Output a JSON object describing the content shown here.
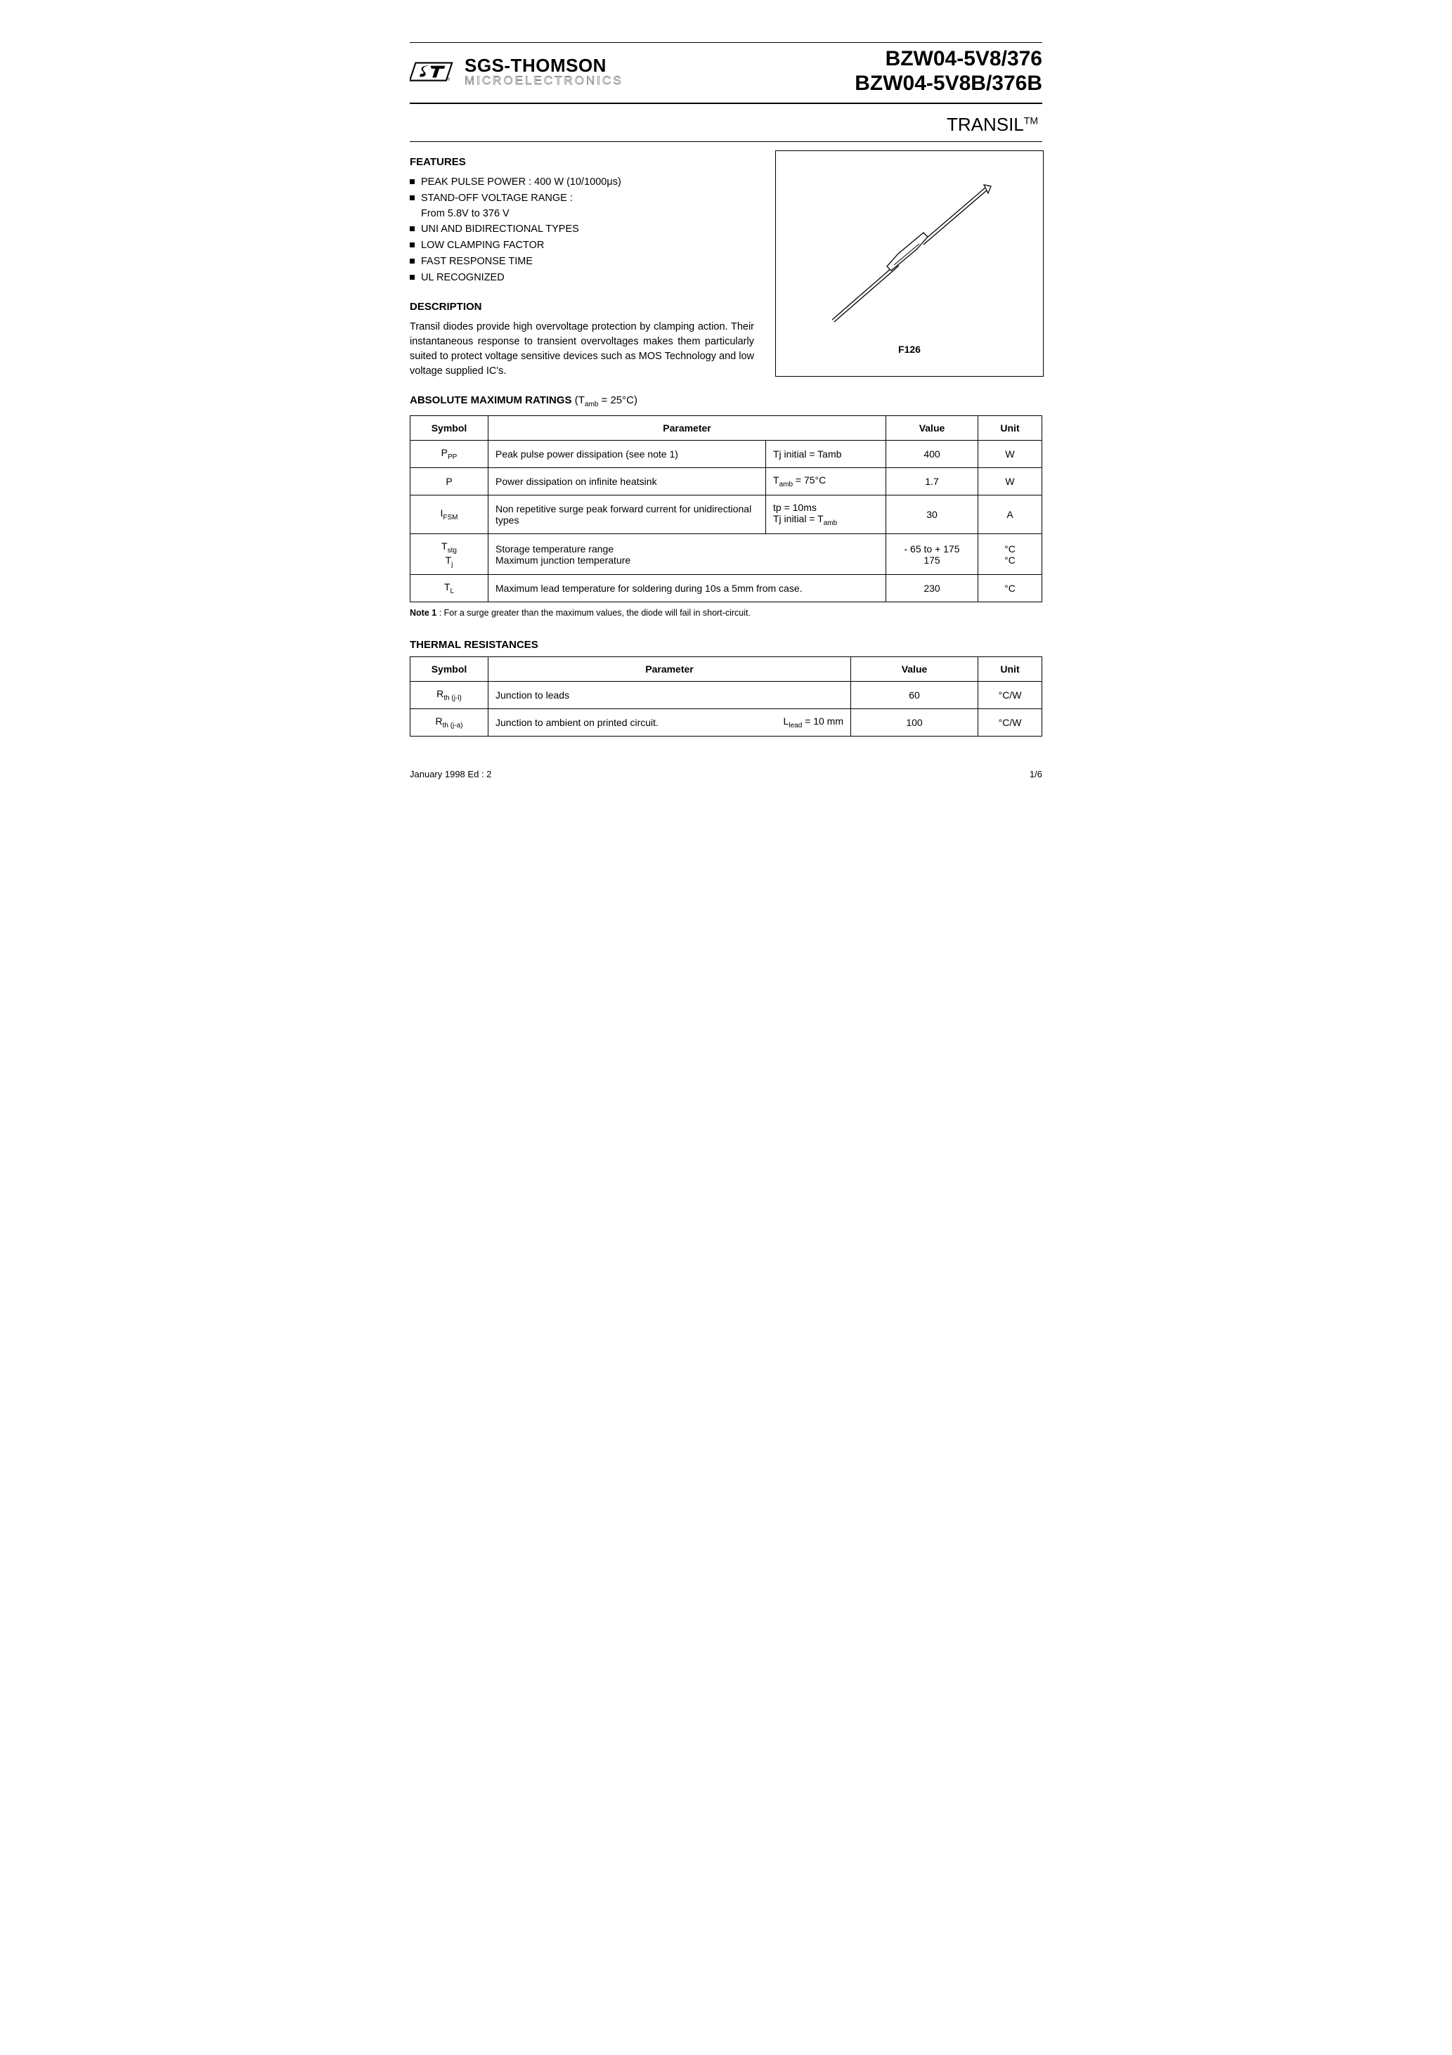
{
  "brand": {
    "main": "SGS-THOMSON",
    "sub": "MICROELECTRONICS"
  },
  "part_numbers": {
    "line1": "BZW04-5V8/376",
    "line2": "BZW04-5V8B/376B"
  },
  "subtitle": {
    "name": "TRANSIL",
    "tm": "TM"
  },
  "features_heading": "FEATURES",
  "features": [
    "PEAK PULSE POWER : 400 W  (10/1000μs)",
    "STAND-OFF VOLTAGE RANGE :",
    "UNI AND BIDIRECTIONAL TYPES",
    "LOW CLAMPING FACTOR",
    "FAST RESPONSE TIME",
    "UL RECOGNIZED"
  ],
  "feature_subline": "From 5.8V to 376 V",
  "description_heading": "DESCRIPTION",
  "description_text": "Transil diodes provide high overvoltage protection by clamping action. Their instantaneous response to transient overvoltages makes them particularly suited to protect voltage sensitive devices such as MOS Technology and low voltage supplied IC's.",
  "package_label": "F126",
  "ratings_heading": "ABSOLUTE MAXIMUM RATINGS",
  "ratings_condition": "(Tamb = 25°C)",
  "ratings_headers": {
    "symbol": "Symbol",
    "parameter": "Parameter",
    "value": "Value",
    "unit": "Unit"
  },
  "ratings_rows": [
    {
      "symbol_html": "P<sub>PP</sub>",
      "param": "Peak pulse power dissipation (see note 1)",
      "cond": "Tj initial = Tamb",
      "value": "400",
      "unit": "W"
    },
    {
      "symbol_html": "P",
      "param": "Power dissipation on infinite heatsink",
      "cond": "T<sub>amb</sub> = 75°C",
      "value": "1.7",
      "unit": "W"
    },
    {
      "symbol_html": "I<sub>FSM</sub>",
      "param": "Non repetitive surge peak forward current for unidirectional types",
      "cond": "tp = 10ms<br>Tj initial = T<sub>amb</sub>",
      "value": "30",
      "unit": "A"
    },
    {
      "symbol_html": "T<sub>stg</sub><br>T<sub>j</sub>",
      "param": "Storage temperature range<br>Maximum junction temperature",
      "cond": "",
      "value": "- 65 to + 175<br>175",
      "unit": "°C<br>°C"
    },
    {
      "symbol_html": "T<sub>L</sub>",
      "param": "Maximum lead temperature for soldering during 10s a 5mm from case.",
      "cond": "",
      "value": "230",
      "unit": "°C"
    }
  ],
  "note1": {
    "label": "Note 1",
    "text": ": For a surge greater than the maximum values, the diode will fail in short-circuit."
  },
  "thermal_heading": "THERMAL RESISTANCES",
  "thermal_rows": [
    {
      "symbol_html": "R<sub>th (j-l)</sub>",
      "param": "Junction to leads",
      "cond": "",
      "value": "60",
      "unit": "°C/W"
    },
    {
      "symbol_html": "R<sub>th (j-a)</sub>",
      "param": "Junction to ambient on printed circuit.",
      "cond": "L<sub>lead</sub> = 10 mm",
      "value": "100",
      "unit": "°C/W"
    }
  ],
  "footer": {
    "left": "January 1998  Ed : 2",
    "right": "1/6"
  },
  "colors": {
    "text": "#000000",
    "bg": "#ffffff",
    "rule": "#000000"
  }
}
